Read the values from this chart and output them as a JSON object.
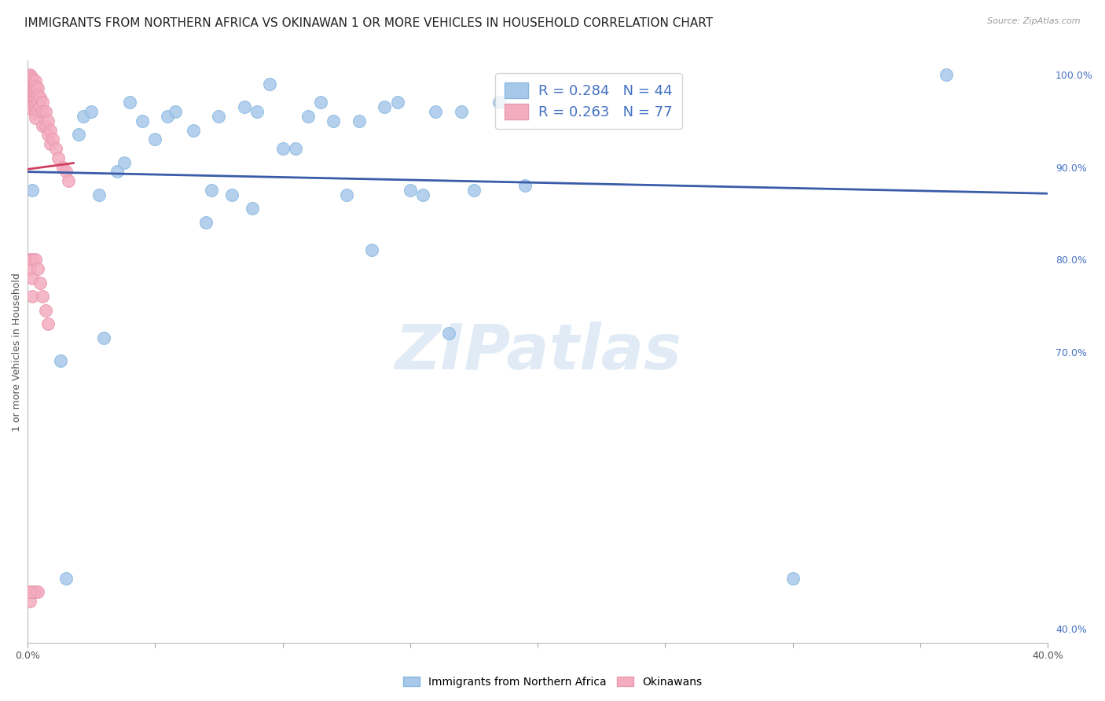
{
  "title": "IMMIGRANTS FROM NORTHERN AFRICA VS OKINAWAN 1 OR MORE VEHICLES IN HOUSEHOLD CORRELATION CHART",
  "source": "Source: ZipAtlas.com",
  "ylabel": "1 or more Vehicles in Household",
  "watermark": "ZIPatlas",
  "legend_blue_r": "R = 0.284",
  "legend_blue_n": "N = 44",
  "legend_pink_r": "R = 0.263",
  "legend_pink_n": "N = 77",
  "legend_blue_label": "Immigrants from Northern Africa",
  "legend_pink_label": "Okinawans",
  "xlim": [
    0.0,
    0.4
  ],
  "ylim": [
    0.385,
    1.015
  ],
  "xticks": [
    0.0,
    0.05,
    0.1,
    0.15,
    0.2,
    0.25,
    0.3,
    0.35,
    0.4
  ],
  "yticks_right": [
    0.4,
    0.7,
    0.8,
    0.9,
    1.0
  ],
  "ytick_labels_right": [
    "40.0%",
    "70.0%",
    "80.0%",
    "90.0%",
    "100.0%"
  ],
  "blue_color": "#A8C8EA",
  "pink_color": "#F4ACBF",
  "trendline_blue_color": "#3A5CA8",
  "trendline_pink_color": "#D04060",
  "blue_scatter_x": [
    0.002,
    0.013,
    0.015,
    0.02,
    0.022,
    0.025,
    0.028,
    0.03,
    0.035,
    0.038,
    0.04,
    0.045,
    0.05,
    0.055,
    0.058,
    0.065,
    0.07,
    0.072,
    0.075,
    0.08,
    0.085,
    0.088,
    0.09,
    0.095,
    0.1,
    0.105,
    0.11,
    0.115,
    0.12,
    0.125,
    0.13,
    0.135,
    0.14,
    0.145,
    0.15,
    0.155,
    0.16,
    0.165,
    0.17,
    0.175,
    0.185,
    0.195,
    0.3,
    0.36
  ],
  "blue_scatter_y": [
    0.875,
    0.69,
    0.455,
    0.935,
    0.955,
    0.96,
    0.87,
    0.715,
    0.895,
    0.905,
    0.97,
    0.95,
    0.93,
    0.955,
    0.96,
    0.94,
    0.84,
    0.875,
    0.955,
    0.87,
    0.965,
    0.855,
    0.96,
    0.99,
    0.92,
    0.92,
    0.955,
    0.97,
    0.95,
    0.87,
    0.95,
    0.81,
    0.965,
    0.97,
    0.875,
    0.87,
    0.96,
    0.72,
    0.96,
    0.875,
    0.97,
    0.88,
    0.455,
    1.0
  ],
  "pink_scatter_x": [
    0.001,
    0.001,
    0.001,
    0.001,
    0.001,
    0.001,
    0.001,
    0.001,
    0.001,
    0.001,
    0.001,
    0.001,
    0.002,
    0.002,
    0.002,
    0.002,
    0.002,
    0.002,
    0.002,
    0.002,
    0.002,
    0.002,
    0.002,
    0.002,
    0.002,
    0.002,
    0.002,
    0.002,
    0.002,
    0.002,
    0.003,
    0.003,
    0.003,
    0.003,
    0.003,
    0.003,
    0.003,
    0.003,
    0.003,
    0.004,
    0.004,
    0.004,
    0.004,
    0.005,
    0.005,
    0.006,
    0.006,
    0.006,
    0.007,
    0.007,
    0.008,
    0.008,
    0.009,
    0.009,
    0.01,
    0.011,
    0.012,
    0.014,
    0.015,
    0.016,
    0.001,
    0.001,
    0.001,
    0.001,
    0.002,
    0.002,
    0.002,
    0.002,
    0.003,
    0.003,
    0.004,
    0.004,
    0.005,
    0.006,
    0.007,
    0.008,
    0.001
  ],
  "pink_scatter_y": [
    1.0,
    0.998,
    0.996,
    0.994,
    0.992,
    0.99,
    0.988,
    0.986,
    0.984,
    0.982,
    0.98,
    0.978,
    0.997,
    0.995,
    0.993,
    0.991,
    0.989,
    0.987,
    0.985,
    0.983,
    0.981,
    0.979,
    0.977,
    0.975,
    0.973,
    0.971,
    0.969,
    0.967,
    0.965,
    0.963,
    0.993,
    0.987,
    0.983,
    0.978,
    0.973,
    0.968,
    0.963,
    0.958,
    0.953,
    0.986,
    0.978,
    0.97,
    0.962,
    0.975,
    0.965,
    0.97,
    0.96,
    0.945,
    0.96,
    0.945,
    0.95,
    0.935,
    0.94,
    0.925,
    0.93,
    0.92,
    0.91,
    0.9,
    0.895,
    0.885,
    0.8,
    0.79,
    0.44,
    0.43,
    0.8,
    0.78,
    0.76,
    0.44,
    0.8,
    0.44,
    0.79,
    0.44,
    0.775,
    0.76,
    0.745,
    0.73,
    0.44
  ],
  "grid_color": "#CCCCCC",
  "background_color": "#FFFFFF",
  "title_fontsize": 11,
  "axis_label_fontsize": 9,
  "tick_fontsize": 9
}
